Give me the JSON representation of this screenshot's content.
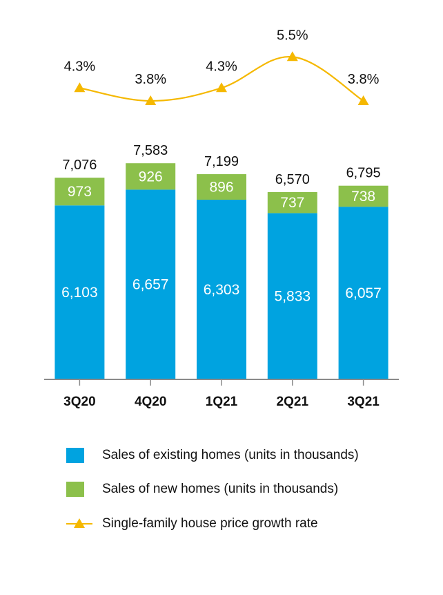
{
  "chart_data": {
    "type": "bar",
    "stacked": true,
    "categories": [
      "3Q20",
      "4Q20",
      "1Q21",
      "2Q21",
      "3Q21"
    ],
    "series": [
      {
        "name": "Sales of existing homes (units in thousands)",
        "type": "bar",
        "color": "#00a3e0",
        "values": [
          6103,
          6657,
          6303,
          5833,
          6057
        ],
        "labels": [
          "6,103",
          "6,657",
          "6,303",
          "5,833",
          "6,057"
        ]
      },
      {
        "name": "Sales of new homes (units in thousands)",
        "type": "bar",
        "color": "#8cc04b",
        "values": [
          973,
          926,
          896,
          737,
          738
        ],
        "labels": [
          "973",
          "926",
          "896",
          "737",
          "738"
        ]
      },
      {
        "name": "Single-family house price growth rate",
        "type": "line",
        "color": "#f5b800",
        "values": [
          4.3,
          3.8,
          4.3,
          5.5,
          3.8
        ],
        "labels": [
          "4.3%",
          "3.8%",
          "4.3%",
          "5.5%",
          "3.8%"
        ]
      }
    ],
    "totals": [
      7076,
      7583,
      7199,
      6570,
      6795
    ],
    "total_labels": [
      "7,076",
      "7,583",
      "7,199",
      "6,570",
      "6,795"
    ],
    "ylim": [
      0,
      7800
    ],
    "grid": false,
    "legend_position": "bottom"
  }
}
